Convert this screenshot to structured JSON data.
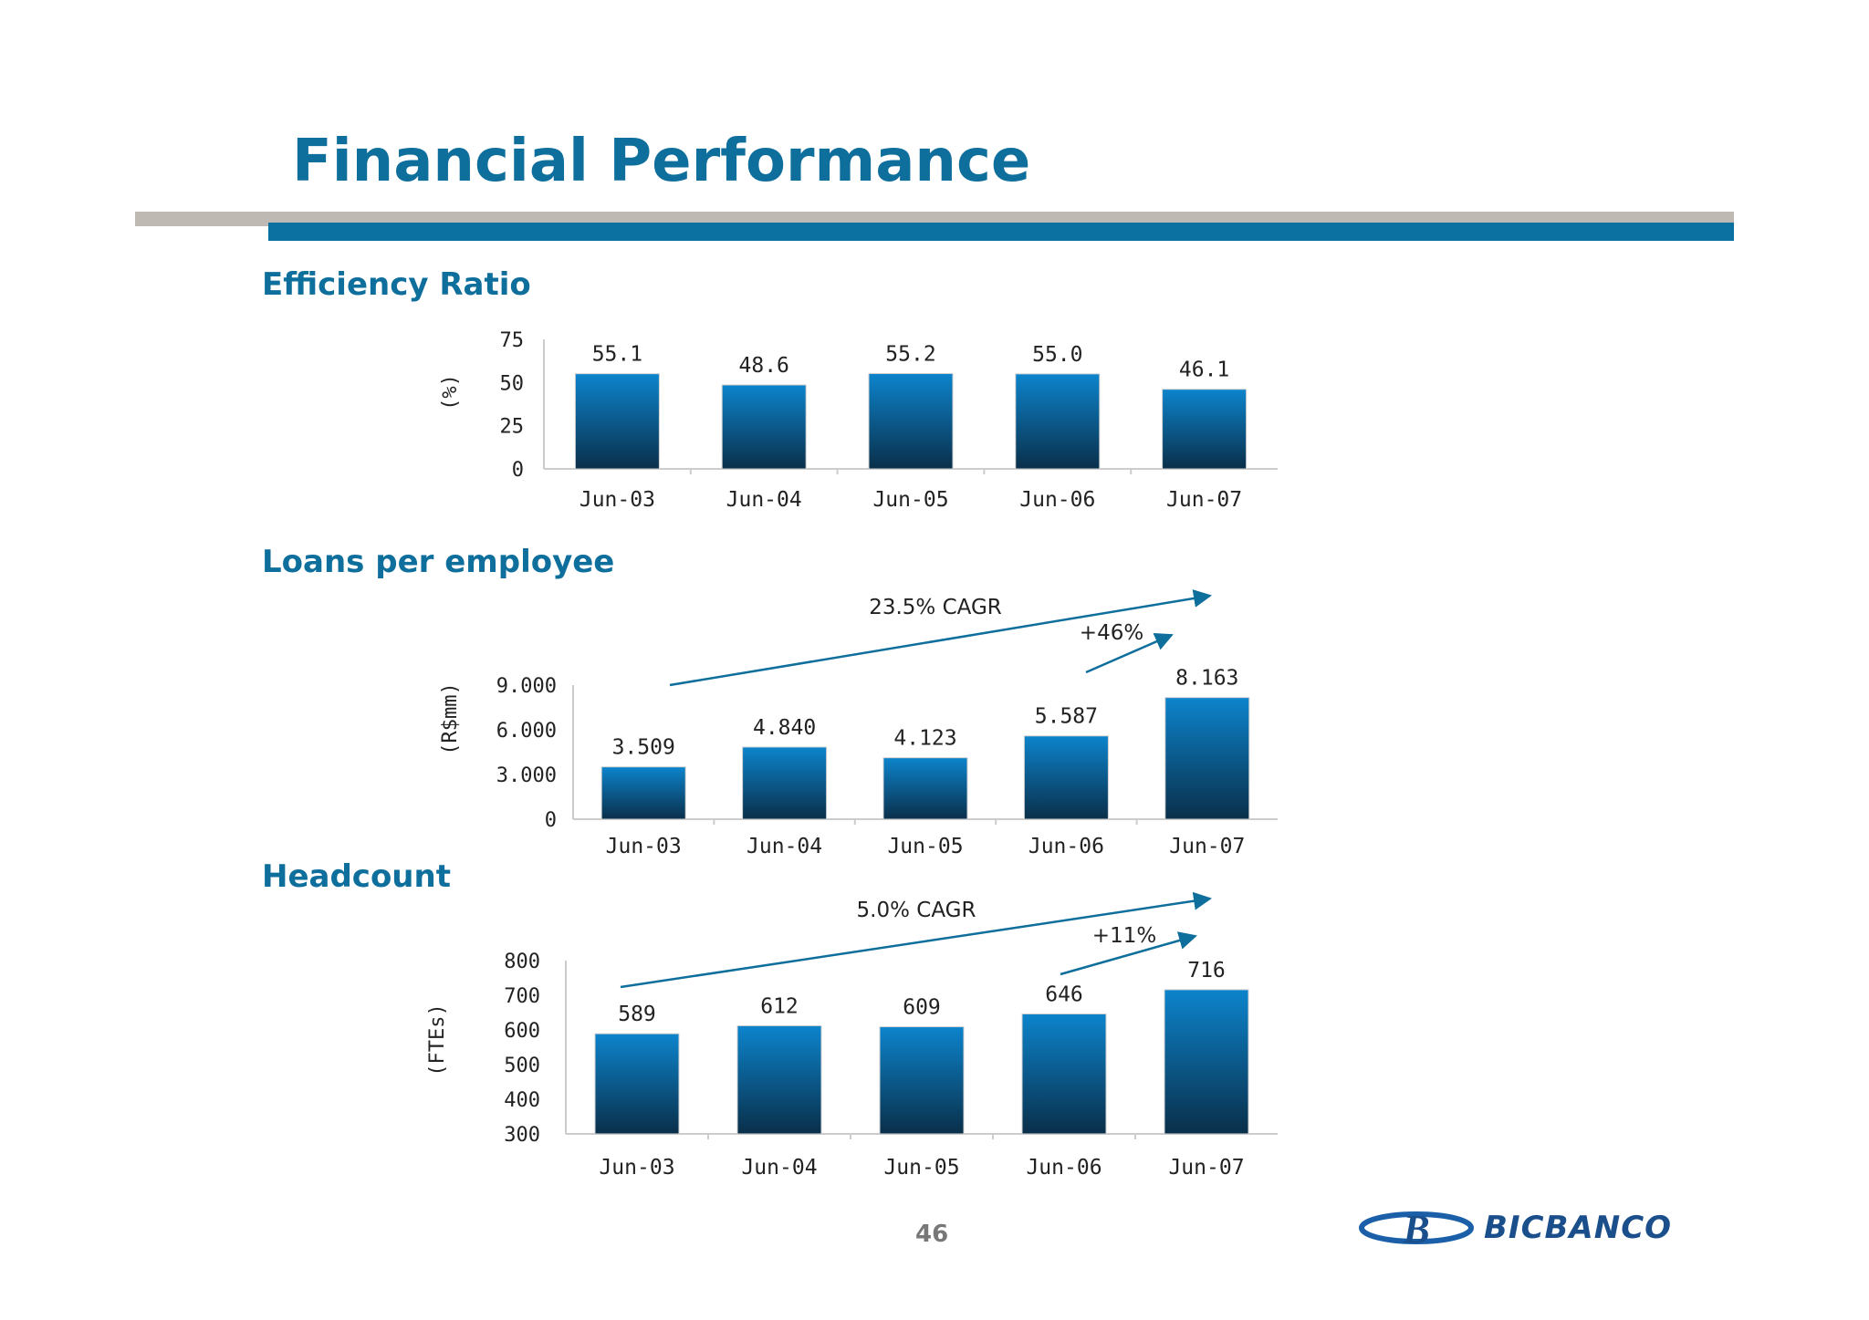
{
  "title": "Financial Performance",
  "page_number": "46",
  "logo": {
    "letter": "B",
    "text": "BICBANCO"
  },
  "colors": {
    "brand_blue": "#0e6e9c",
    "bar_top": "#0c84cc",
    "bar_bottom": "#0a2f4a",
    "grey_rule": "#bfb9b4"
  },
  "sections": {
    "efficiency": "Efficiency Ratio",
    "loans": "Loans per employee",
    "headcount": "Headcount"
  },
  "chart_data": [
    {
      "type": "bar",
      "title": "Efficiency Ratio",
      "categories": [
        "Jun-03",
        "Jun-04",
        "Jun-05",
        "Jun-06",
        "Jun-07"
      ],
      "values": [
        55.1,
        48.6,
        55.2,
        55.0,
        46.1
      ],
      "value_labels": [
        "55.1",
        "48.6",
        "55.2",
        "55.0",
        "46.1"
      ],
      "ylabel": "(%)",
      "ylim": [
        0,
        75
      ],
      "yticks": [
        "0",
        "25",
        "50",
        "75"
      ],
      "annotations": []
    },
    {
      "type": "bar",
      "title": "Loans per employee",
      "categories": [
        "Jun-03",
        "Jun-04",
        "Jun-05",
        "Jun-06",
        "Jun-07"
      ],
      "values": [
        3509,
        4840,
        4123,
        5587,
        8163
      ],
      "value_labels": [
        "3.509",
        "4.840",
        "4.123",
        "5.587",
        "8.163"
      ],
      "ylabel": "(R$mm)",
      "ylim": [
        0,
        9000
      ],
      "yticks": [
        "0",
        "3.000",
        "6.000",
        "9.000"
      ],
      "annotations": [
        {
          "text": "23.5% CAGR",
          "from": "Jun-03",
          "to": "Jun-07"
        },
        {
          "text": "+46%",
          "from": "Jun-06",
          "to": "Jun-07"
        }
      ]
    },
    {
      "type": "bar",
      "title": "Headcount",
      "categories": [
        "Jun-03",
        "Jun-04",
        "Jun-05",
        "Jun-06",
        "Jun-07"
      ],
      "values": [
        589,
        612,
        609,
        646,
        716
      ],
      "value_labels": [
        "589",
        "612",
        "609",
        "646",
        "716"
      ],
      "ylabel": "(FTEs)",
      "ylim": [
        300,
        800
      ],
      "yticks": [
        "300",
        "400",
        "500",
        "600",
        "700",
        "800"
      ],
      "annotations": [
        {
          "text": "5.0% CAGR",
          "from": "Jun-03",
          "to": "Jun-07"
        },
        {
          "text": "+11%",
          "from": "Jun-06",
          "to": "Jun-07"
        }
      ]
    }
  ]
}
